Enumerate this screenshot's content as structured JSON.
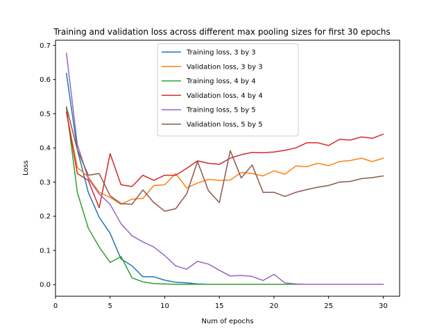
{
  "chart_data": {
    "type": "line",
    "title": "Training and validation loss across different max pooling sizes for first 30 epochs",
    "xlabel": "Num of epochs",
    "ylabel": "Loss",
    "xlim": [
      0,
      31.5
    ],
    "ylim": [
      -0.034,
      0.715
    ],
    "xticks": [
      0,
      5,
      10,
      15,
      20,
      25,
      30
    ],
    "yticks": [
      0.0,
      0.1,
      0.2,
      0.3,
      0.4,
      0.5,
      0.6,
      0.7
    ],
    "xtick_labels": [
      "0",
      "5",
      "10",
      "15",
      "20",
      "25",
      "30"
    ],
    "ytick_labels": [
      "0.0",
      "0.1",
      "0.2",
      "0.3",
      "0.4",
      "0.5",
      "0.6",
      "0.7"
    ],
    "grid": false,
    "legend_position": "top-center",
    "x": [
      1,
      2,
      3,
      4,
      5,
      6,
      7,
      8,
      9,
      10,
      11,
      12,
      13,
      14,
      15,
      16,
      17,
      18,
      19,
      20,
      21,
      22,
      23,
      24,
      25,
      26,
      27,
      28,
      29,
      30
    ],
    "series": [
      {
        "name": "Training loss, 3 by 3",
        "color": "#1f77b4",
        "values": [
          0.618,
          0.395,
          0.27,
          0.197,
          0.15,
          0.075,
          0.055,
          0.023,
          0.023,
          0.013,
          0.007,
          0.005,
          0.002,
          0.001,
          0.001,
          0.001,
          0.001,
          0.001,
          0.001,
          0.001,
          0.001,
          0.001,
          0.001,
          0.001,
          0.001,
          0.001,
          0.001,
          0.001,
          0.001,
          0.001
        ]
      },
      {
        "name": "Validation loss, 3 by 3",
        "color": "#ff7f0e",
        "values": [
          0.505,
          0.343,
          0.315,
          0.27,
          0.255,
          0.235,
          0.25,
          0.252,
          0.29,
          0.292,
          0.325,
          0.283,
          0.297,
          0.308,
          0.305,
          0.306,
          0.328,
          0.325,
          0.318,
          0.333,
          0.323,
          0.347,
          0.345,
          0.355,
          0.348,
          0.36,
          0.363,
          0.37,
          0.36,
          0.37
        ]
      },
      {
        "name": "Training loss, 4 by 4",
        "color": "#2ca02c",
        "values": [
          0.518,
          0.27,
          0.165,
          0.11,
          0.065,
          0.082,
          0.02,
          0.008,
          0.003,
          0.002,
          0.001,
          0.001,
          0.001,
          0.001,
          0.001,
          0.001,
          0.001,
          0.001,
          0.001,
          0.001,
          0.001,
          0.001,
          0.001,
          0.001,
          0.001,
          0.001,
          0.001,
          0.001,
          0.001,
          0.001
        ]
      },
      {
        "name": "Validation loss, 4 by 4",
        "color": "#d62728",
        "values": [
          0.505,
          0.325,
          0.305,
          0.225,
          0.383,
          0.292,
          0.287,
          0.32,
          0.305,
          0.32,
          0.32,
          0.34,
          0.362,
          0.355,
          0.352,
          0.37,
          0.38,
          0.387,
          0.386,
          0.388,
          0.393,
          0.4,
          0.415,
          0.415,
          0.407,
          0.425,
          0.423,
          0.432,
          0.428,
          0.44
        ]
      },
      {
        "name": "Training loss, 5 by 5",
        "color": "#9467bd",
        "values": [
          0.677,
          0.41,
          0.31,
          0.265,
          0.235,
          0.178,
          0.143,
          0.125,
          0.11,
          0.085,
          0.055,
          0.045,
          0.068,
          0.06,
          0.042,
          0.025,
          0.027,
          0.024,
          0.012,
          0.03,
          0.005,
          0.002,
          0.001,
          0.001,
          0.001,
          0.001,
          0.001,
          0.001,
          0.001,
          0.001
        ]
      },
      {
        "name": "Validation loss, 5 by 5",
        "color": "#8c564b",
        "values": [
          0.52,
          0.395,
          0.32,
          0.325,
          0.26,
          0.237,
          0.235,
          0.277,
          0.24,
          0.215,
          0.222,
          0.265,
          0.36,
          0.275,
          0.24,
          0.392,
          0.312,
          0.35,
          0.27,
          0.27,
          0.258,
          0.27,
          0.278,
          0.285,
          0.29,
          0.3,
          0.302,
          0.31,
          0.313,
          0.318
        ]
      }
    ]
  }
}
